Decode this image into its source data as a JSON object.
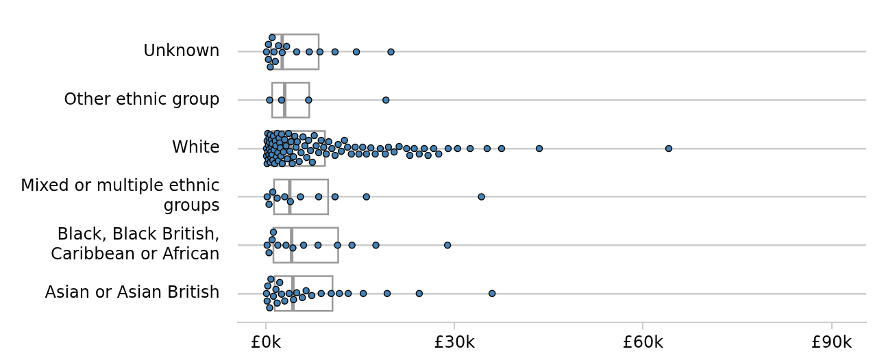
{
  "chart_data": {
    "type": "box",
    "orientation": "horizontal",
    "categories": [
      "Unknown",
      "Other ethnic group",
      "White",
      "Mixed or multiple ethnic groups",
      "Black, Black British, Caribbean or African",
      "Asian or Asian British"
    ],
    "series": [
      {
        "type": "box",
        "color": "#999999",
        "boxes": [
          {
            "low": 0.8,
            "q1": 0.8,
            "median": 2.6,
            "q3": 8.4,
            "high": 8.4
          },
          {
            "low": 1.0,
            "q1": 1.0,
            "median": 3.0,
            "q3": 6.9,
            "high": 6.9
          },
          {
            "low": 1.0,
            "q1": 1.0,
            "median": 3.9,
            "q3": 9.4,
            "high": 9.4
          },
          {
            "low": 1.3,
            "q1": 1.3,
            "median": 3.8,
            "q3": 9.9,
            "high": 9.9
          },
          {
            "low": 1.2,
            "q1": 1.2,
            "median": 4.1,
            "q3": 11.5,
            "high": 11.5
          },
          {
            "low": 1.4,
            "q1": 1.4,
            "median": 4.3,
            "q3": 10.6,
            "high": 10.6
          }
        ]
      },
      {
        "type": "scatter",
        "color": "#4682b4",
        "x": [
          "Unknown",
          "Unknown",
          "Unknown",
          "Unknown",
          "Unknown",
          "Unknown",
          "Unknown",
          "Unknown",
          "Unknown",
          "Unknown",
          "Unknown",
          "Unknown",
          "Unknown",
          "Unknown",
          "Unknown",
          "Unknown",
          "Other ethnic group",
          "Other ethnic group",
          "Other ethnic group",
          "Other ethnic group",
          "White",
          "White",
          "White",
          "White",
          "White",
          "White",
          "White",
          "White",
          "White",
          "White",
          "White",
          "White",
          "White",
          "White",
          "White",
          "White",
          "White",
          "White",
          "White",
          "White",
          "White",
          "White",
          "White",
          "White",
          "White",
          "White",
          "White",
          "White",
          "White",
          "White",
          "White",
          "White",
          "White",
          "White",
          "White",
          "White",
          "White",
          "White",
          "White",
          "White",
          "White",
          "White",
          "White",
          "White",
          "White",
          "White",
          "White",
          "White",
          "White",
          "White",
          "White",
          "White",
          "White",
          "White",
          "White",
          "White",
          "White",
          "White",
          "White",
          "White",
          "White",
          "White",
          "White",
          "White",
          "White",
          "White",
          "White",
          "White",
          "White",
          "White",
          "White",
          "White",
          "White",
          "White",
          "White",
          "White",
          "White",
          "White",
          "White",
          "White",
          "White",
          "White",
          "White",
          "White",
          "White",
          "White",
          "White",
          "White",
          "White",
          "White",
          "White",
          "White",
          "White",
          "White",
          "White",
          "White",
          "Mixed or multiple ethnic groups",
          "Mixed or multiple ethnic groups",
          "Mixed or multiple ethnic groups",
          "Mixed or multiple ethnic groups",
          "Mixed or multiple ethnic groups",
          "Mixed or multiple ethnic groups",
          "Mixed or multiple ethnic groups",
          "Mixed or multiple ethnic groups",
          "Mixed or multiple ethnic groups",
          "Mixed or multiple ethnic groups",
          "Mixed or multiple ethnic groups",
          "Black, Black British, Caribbean or African",
          "Black, Black British, Caribbean or African",
          "Black, Black British, Caribbean or African",
          "Black, Black British, Caribbean or African",
          "Black, Black British, Caribbean or African",
          "Black, Black British, Caribbean or African",
          "Black, Black British, Caribbean or African",
          "Black, Black British, Caribbean or African",
          "Black, Black British, Caribbean or African",
          "Black, Black British, Caribbean or African",
          "Black, Black British, Caribbean or African",
          "Black, Black British, Caribbean or African",
          "Black, Black British, Caribbean or African",
          "Asian or Asian British",
          "Asian or Asian British",
          "Asian or Asian British",
          "Asian or Asian British",
          "Asian or Asian British",
          "Asian or Asian British",
          "Asian or Asian British",
          "Asian or Asian British",
          "Asian or Asian British",
          "Asian or Asian British",
          "Asian or Asian British",
          "Asian or Asian British",
          "Asian or Asian British",
          "Asian or Asian British",
          "Asian or Asian British",
          "Asian or Asian British",
          "Asian or Asian British",
          "Asian or Asian British",
          "Asian or Asian British",
          "Asian or Asian British",
          "Asian or Asian British",
          "Asian or Asian British",
          "Asian or Asian British",
          "Asian or Asian British",
          "Asian or Asian British"
        ],
        "values": [
          1.5,
          0.4,
          1.0,
          0.1,
          2.6,
          4.9,
          3.3,
          6.9,
          8.6,
          11.0,
          14.4,
          19.9,
          1.3,
          0.4,
          0.7,
          2.0,
          0.6,
          2.5,
          6.8,
          19.1,
          0.1,
          0.1,
          0.2,
          0.2,
          0.3,
          0.3,
          0.4,
          0.4,
          0.5,
          0.5,
          0.6,
          0.6,
          0.7,
          0.7,
          0.8,
          0.8,
          0.9,
          0.9,
          1.0,
          1.0,
          1.1,
          1.2,
          1.3,
          1.4,
          1.5,
          1.6,
          1.7,
          1.8,
          1.9,
          2.0,
          2.1,
          2.2,
          2.3,
          2.4,
          2.5,
          2.6,
          2.8,
          3.0,
          3.2,
          3.4,
          3.6,
          3.8,
          4.0,
          4.2,
          4.4,
          4.6,
          4.8,
          5.0,
          5.3,
          5.6,
          5.9,
          6.2,
          6.5,
          6.8,
          7.1,
          7.4,
          7.7,
          8.0,
          8.4,
          8.8,
          9.2,
          9.6,
          10.0,
          10.5,
          11.0,
          11.5,
          12.0,
          12.5,
          13.0,
          13.6,
          14.2,
          14.8,
          15.4,
          16.0,
          16.7,
          17.4,
          18.2,
          19.0,
          19.5,
          20.4,
          21.2,
          22.4,
          22.9,
          23.6,
          24.4,
          25.2,
          25.8,
          26.7,
          27.5,
          29.0,
          30.5,
          32.5,
          35.2,
          37.5,
          43.5,
          64.1,
          1.1,
          0.2,
          0.5,
          1.8,
          3.0,
          3.9,
          5.5,
          8.4,
          11.0,
          16.0,
          34.3,
          1.0,
          1.9,
          0.2,
          0.5,
          1.2,
          4.3,
          3.2,
          6.0,
          8.3,
          11.4,
          13.7,
          17.5,
          28.9,
          1.6,
          0.3,
          0.8,
          0.1,
          0.2,
          0.6,
          1.2,
          1.8,
          2.2,
          3.0,
          2.5,
          3.7,
          4.4,
          4.9,
          5.8,
          6.4,
          7.3,
          8.8,
          10.4,
          11.7,
          13.1,
          15.5,
          19.3,
          24.4,
          36.0
        ]
      }
    ],
    "xlim": [
      -4.5,
      95.5
    ],
    "xticks": [
      {
        "value": 0,
        "label": "£0k"
      },
      {
        "value": 30,
        "label": "£30k"
      },
      {
        "value": 60,
        "label": "£60k"
      },
      {
        "value": 90,
        "label": "£90k"
      }
    ],
    "grid": "y",
    "marker": "circle"
  }
}
